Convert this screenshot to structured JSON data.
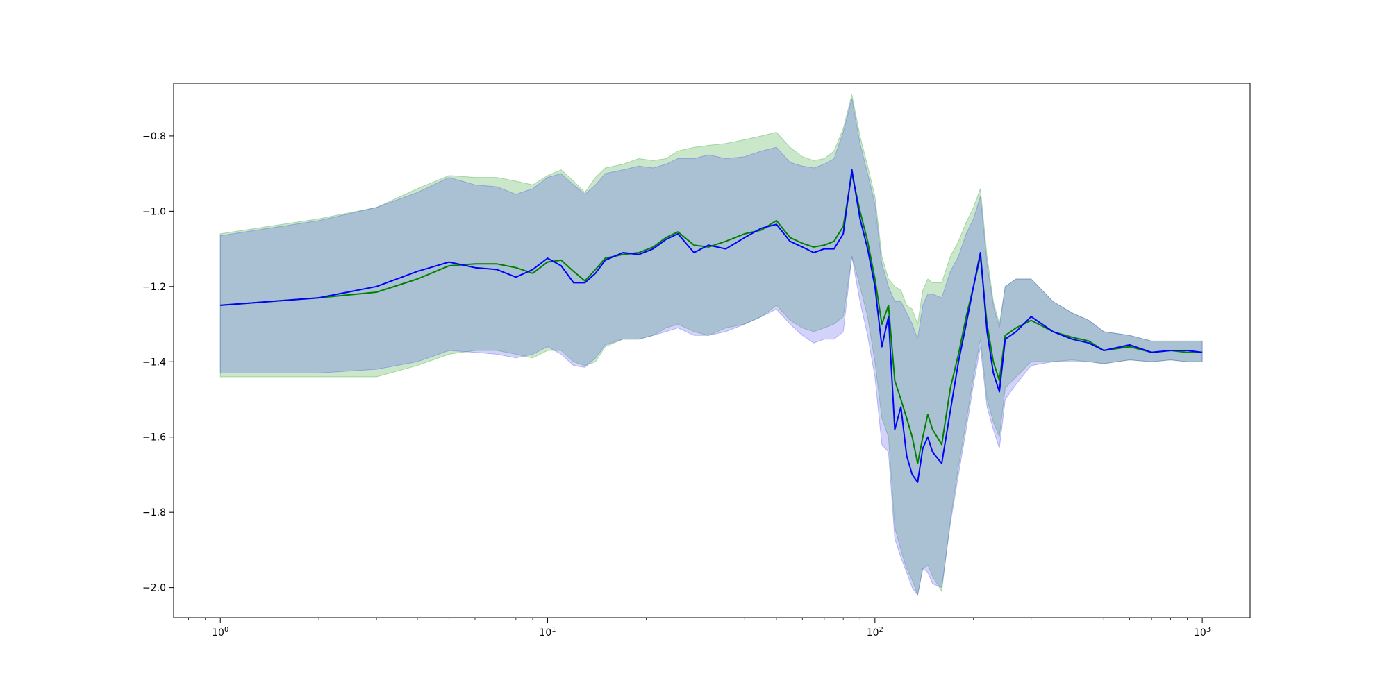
{
  "chart_data": {
    "type": "line",
    "title": "",
    "xlabel": "",
    "ylabel": "",
    "x_scale": "log",
    "xlim": [
      0.72,
      1400
    ],
    "ylim": [
      -2.08,
      -0.66
    ],
    "grid": false,
    "legend": "none",
    "x_ticks": [
      {
        "value": 1,
        "base": "10",
        "exp": "0"
      },
      {
        "value": 10,
        "base": "10",
        "exp": "1"
      },
      {
        "value": 100,
        "base": "10",
        "exp": "2"
      },
      {
        "value": 1000,
        "base": "10",
        "exp": "3"
      }
    ],
    "y_ticks": [
      {
        "value": -0.8,
        "label": "−0.8"
      },
      {
        "value": -1.0,
        "label": "−1.0"
      },
      {
        "value": -1.2,
        "label": "−1.2"
      },
      {
        "value": -1.4,
        "label": "−1.4"
      },
      {
        "value": -1.6,
        "label": "−1.6"
      },
      {
        "value": -1.8,
        "label": "−1.8"
      },
      {
        "value": -2.0,
        "label": "−2.0"
      }
    ],
    "series": [
      {
        "color": "#008000",
        "band_color": "#2ca02c",
        "x": [
          1,
          2,
          3,
          4,
          5,
          6,
          7,
          8,
          9,
          10,
          11,
          12,
          13,
          14,
          15,
          17,
          19,
          21,
          23,
          25,
          28,
          31,
          35,
          40,
          45,
          50,
          55,
          60,
          65,
          70,
          75,
          80,
          85,
          90,
          95,
          100,
          105,
          110,
          115,
          120,
          125,
          130,
          135,
          140,
          145,
          150,
          160,
          170,
          180,
          190,
          200,
          210,
          220,
          230,
          240,
          250,
          270,
          300,
          350,
          400,
          450,
          500,
          600,
          700,
          800,
          900,
          1000
        ],
        "mean": [
          -1.25,
          -1.23,
          -1.215,
          -1.18,
          -1.145,
          -1.14,
          -1.14,
          -1.15,
          -1.165,
          -1.135,
          -1.13,
          -1.16,
          -1.185,
          -1.155,
          -1.125,
          -1.115,
          -1.11,
          -1.095,
          -1.07,
          -1.055,
          -1.09,
          -1.095,
          -1.08,
          -1.06,
          -1.05,
          -1.025,
          -1.07,
          -1.085,
          -1.095,
          -1.09,
          -1.08,
          -1.04,
          -0.9,
          -1.0,
          -1.08,
          -1.18,
          -1.3,
          -1.25,
          -1.45,
          -1.5,
          -1.55,
          -1.6,
          -1.67,
          -1.6,
          -1.54,
          -1.58,
          -1.62,
          -1.47,
          -1.38,
          -1.28,
          -1.2,
          -1.12,
          -1.3,
          -1.4,
          -1.45,
          -1.33,
          -1.31,
          -1.29,
          -1.32,
          -1.335,
          -1.345,
          -1.37,
          -1.36,
          -1.375,
          -1.37,
          -1.375,
          -1.375
        ],
        "upper": [
          -1.06,
          -1.02,
          -0.99,
          -0.94,
          -0.905,
          -0.91,
          -0.91,
          -0.92,
          -0.93,
          -0.905,
          -0.89,
          -0.92,
          -0.95,
          -0.91,
          -0.885,
          -0.875,
          -0.86,
          -0.865,
          -0.86,
          -0.84,
          -0.83,
          -0.825,
          -0.82,
          -0.81,
          -0.8,
          -0.79,
          -0.83,
          -0.855,
          -0.865,
          -0.86,
          -0.84,
          -0.78,
          -0.69,
          -0.8,
          -0.88,
          -0.96,
          -1.12,
          -1.18,
          -1.2,
          -1.21,
          -1.25,
          -1.26,
          -1.3,
          -1.21,
          -1.18,
          -1.19,
          -1.19,
          -1.12,
          -1.08,
          -1.03,
          -0.99,
          -0.94,
          -1.12,
          -1.24,
          -1.3,
          -1.2,
          -1.18,
          -1.18,
          -1.24,
          -1.27,
          -1.29,
          -1.32,
          -1.33,
          -1.345,
          -1.345,
          -1.345,
          -1.345
        ],
        "lower": [
          -1.44,
          -1.44,
          -1.44,
          -1.41,
          -1.38,
          -1.37,
          -1.37,
          -1.38,
          -1.39,
          -1.37,
          -1.37,
          -1.4,
          -1.41,
          -1.4,
          -1.36,
          -1.34,
          -1.34,
          -1.33,
          -1.31,
          -1.3,
          -1.32,
          -1.33,
          -1.31,
          -1.3,
          -1.28,
          -1.25,
          -1.29,
          -1.31,
          -1.32,
          -1.31,
          -1.3,
          -1.28,
          -1.12,
          -1.2,
          -1.28,
          -1.4,
          -1.55,
          -1.6,
          -1.84,
          -1.9,
          -1.95,
          -1.98,
          -2.02,
          -1.95,
          -1.94,
          -1.97,
          -2.01,
          -1.82,
          -1.68,
          -1.56,
          -1.44,
          -1.34,
          -1.5,
          -1.56,
          -1.6,
          -1.47,
          -1.44,
          -1.4,
          -1.4,
          -1.395,
          -1.4,
          -1.405,
          -1.395,
          -1.4,
          -1.395,
          -1.4,
          -1.4
        ]
      },
      {
        "color": "#0000ff",
        "band_color": "#4a4af0",
        "x": [
          1,
          2,
          3,
          4,
          5,
          6,
          7,
          8,
          9,
          10,
          11,
          12,
          13,
          14,
          15,
          17,
          19,
          21,
          23,
          25,
          28,
          31,
          35,
          40,
          45,
          50,
          55,
          60,
          65,
          70,
          75,
          80,
          85,
          90,
          95,
          100,
          105,
          110,
          115,
          120,
          125,
          130,
          135,
          140,
          145,
          150,
          160,
          170,
          180,
          190,
          200,
          210,
          220,
          230,
          240,
          250,
          270,
          300,
          350,
          400,
          450,
          500,
          600,
          700,
          800,
          900,
          1000
        ],
        "mean": [
          -1.25,
          -1.23,
          -1.2,
          -1.16,
          -1.135,
          -1.15,
          -1.155,
          -1.175,
          -1.155,
          -1.125,
          -1.145,
          -1.19,
          -1.19,
          -1.165,
          -1.13,
          -1.11,
          -1.115,
          -1.1,
          -1.075,
          -1.06,
          -1.11,
          -1.09,
          -1.1,
          -1.07,
          -1.045,
          -1.035,
          -1.08,
          -1.095,
          -1.11,
          -1.1,
          -1.1,
          -1.06,
          -0.89,
          -1.02,
          -1.1,
          -1.2,
          -1.36,
          -1.28,
          -1.58,
          -1.52,
          -1.65,
          -1.7,
          -1.72,
          -1.63,
          -1.6,
          -1.64,
          -1.67,
          -1.53,
          -1.4,
          -1.3,
          -1.2,
          -1.11,
          -1.32,
          -1.43,
          -1.48,
          -1.34,
          -1.32,
          -1.28,
          -1.32,
          -1.34,
          -1.35,
          -1.37,
          -1.355,
          -1.375,
          -1.37,
          -1.37,
          -1.375
        ],
        "upper": [
          -1.065,
          -1.025,
          -0.99,
          -0.95,
          -0.91,
          -0.93,
          -0.935,
          -0.955,
          -0.94,
          -0.91,
          -0.9,
          -0.93,
          -0.955,
          -0.93,
          -0.9,
          -0.89,
          -0.88,
          -0.885,
          -0.875,
          -0.86,
          -0.86,
          -0.85,
          -0.86,
          -0.855,
          -0.84,
          -0.83,
          -0.87,
          -0.88,
          -0.885,
          -0.875,
          -0.86,
          -0.79,
          -0.7,
          -0.82,
          -0.9,
          -0.98,
          -1.14,
          -1.2,
          -1.24,
          -1.24,
          -1.27,
          -1.3,
          -1.34,
          -1.25,
          -1.22,
          -1.22,
          -1.23,
          -1.16,
          -1.12,
          -1.06,
          -1.02,
          -0.96,
          -1.14,
          -1.25,
          -1.31,
          -1.2,
          -1.18,
          -1.18,
          -1.24,
          -1.27,
          -1.29,
          -1.32,
          -1.33,
          -1.345,
          -1.345,
          -1.345,
          -1.345
        ],
        "lower": [
          -1.43,
          -1.43,
          -1.42,
          -1.4,
          -1.37,
          -1.375,
          -1.38,
          -1.39,
          -1.38,
          -1.36,
          -1.38,
          -1.41,
          -1.415,
          -1.39,
          -1.355,
          -1.34,
          -1.34,
          -1.33,
          -1.32,
          -1.31,
          -1.33,
          -1.33,
          -1.32,
          -1.3,
          -1.28,
          -1.26,
          -1.3,
          -1.33,
          -1.35,
          -1.34,
          -1.34,
          -1.32,
          -1.12,
          -1.24,
          -1.33,
          -1.44,
          -1.62,
          -1.64,
          -1.87,
          -1.92,
          -1.96,
          -2.0,
          -2.02,
          -1.95,
          -1.96,
          -1.99,
          -2.0,
          -1.83,
          -1.7,
          -1.58,
          -1.46,
          -1.36,
          -1.52,
          -1.58,
          -1.63,
          -1.5,
          -1.46,
          -1.41,
          -1.4,
          -1.4,
          -1.4,
          -1.405,
          -1.395,
          -1.4,
          -1.395,
          -1.4,
          -1.4
        ]
      }
    ]
  }
}
